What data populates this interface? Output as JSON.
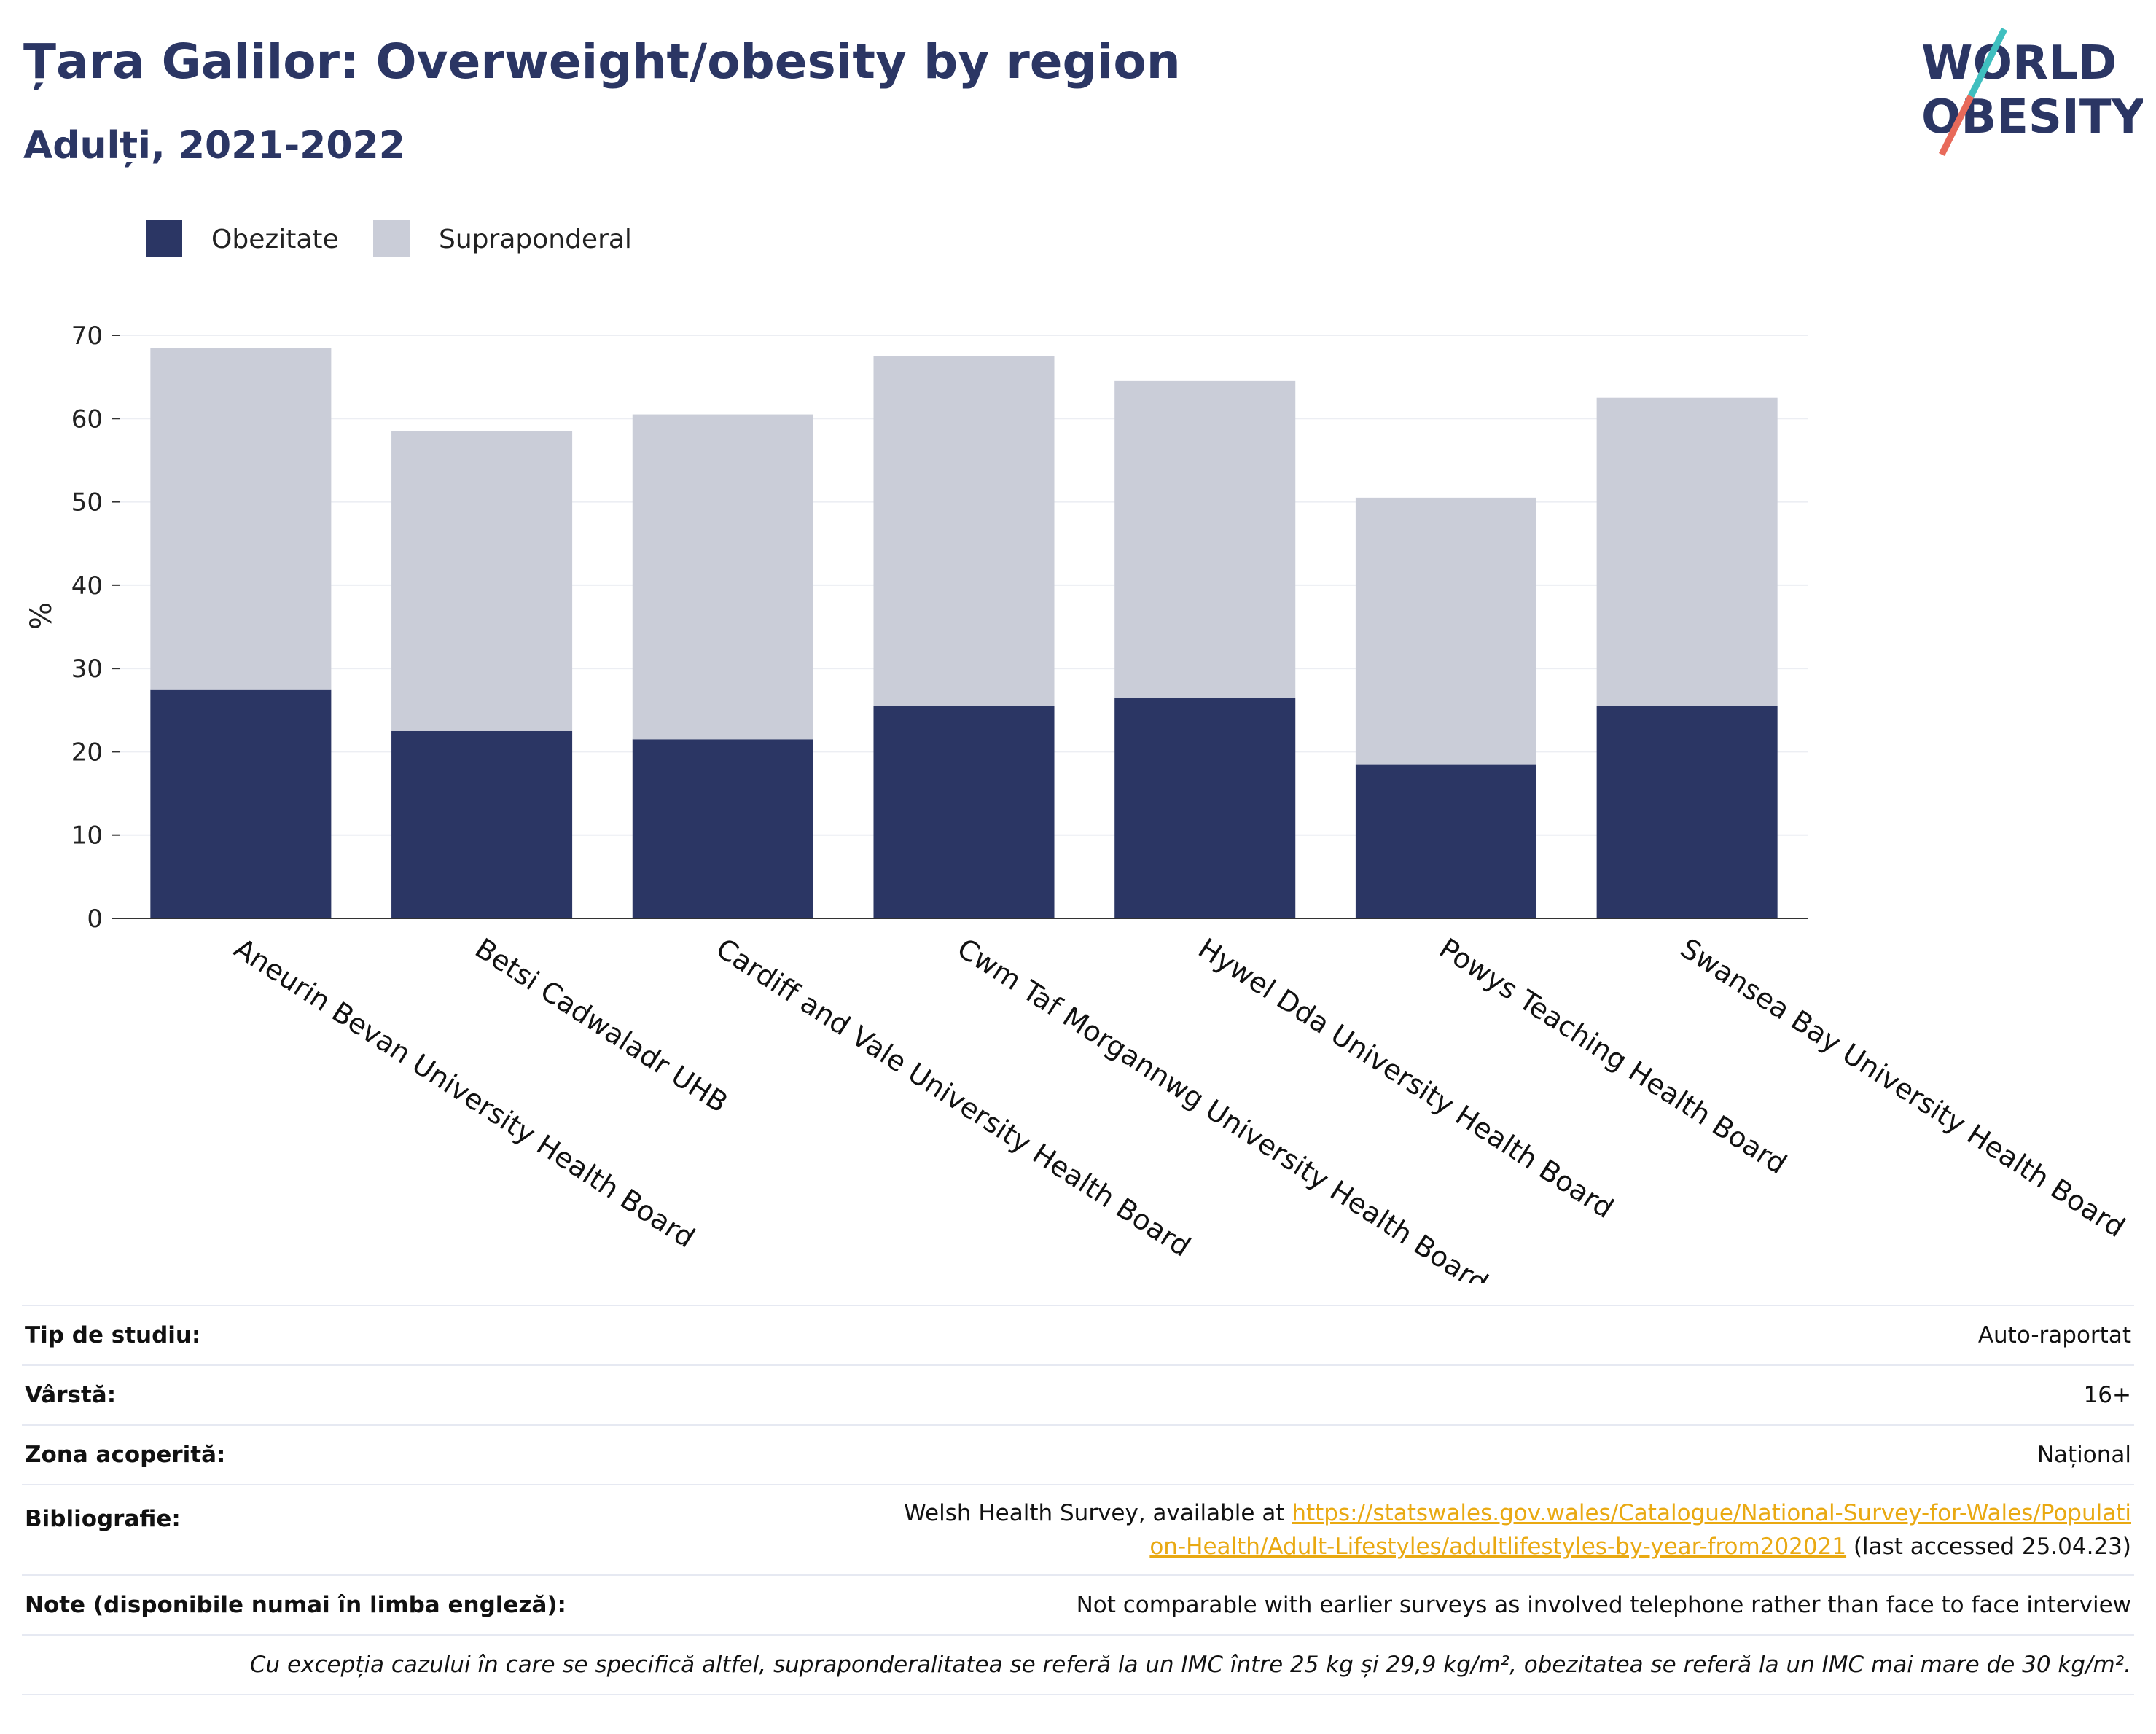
{
  "header": {
    "title": "Țara Galilor: Overweight/obesity by region",
    "subtitle": "Adulți, 2021-2022"
  },
  "logo": {
    "line1": "WORLD",
    "line2": "OBESITY"
  },
  "colors": {
    "obesity": "#2b3664",
    "overweight": "#cacdd8",
    "title": "#2b3664",
    "link": "#e9a912",
    "logo_teal": "#3fbfbf",
    "logo_coral": "#e86a5a"
  },
  "chart_data": {
    "type": "bar",
    "stacked": true,
    "categories": [
      "Aneurin Bevan University Health Board",
      "Betsi Cadwaladr UHB",
      "Cardiff and Vale University Health Board",
      "Cwm Taf Morgannwg University Health Board",
      "Hywel Dda University Health Board",
      "Powys Teaching Health Board",
      "Swansea Bay University Health Board"
    ],
    "series": [
      {
        "name": "Obezitate",
        "values": [
          27.5,
          22.5,
          21.5,
          25.5,
          26.5,
          18.5,
          25.5
        ]
      },
      {
        "name": "Supraponderal",
        "values": [
          41,
          36,
          39,
          42,
          38,
          32,
          37
        ]
      }
    ],
    "ylabel": "%",
    "ylim": [
      0,
      70
    ],
    "yticks": [
      0,
      10,
      20,
      30,
      40,
      50,
      60,
      70
    ],
    "grid": true,
    "legend": "top-left"
  },
  "info": {
    "study_type": {
      "label": "Tip de studiu:",
      "value": "Auto-raportat"
    },
    "age": {
      "label": "Vârstă:",
      "value": "16+"
    },
    "coverage": {
      "label": "Zona acoperită:",
      "value": "Național"
    },
    "bibliography": {
      "label": "Bibliografie:",
      "prefix": "Welsh Health Survey, available at",
      "url": "https://statswales.gov.wales/Catalogue/National-Survey-for-Wales/Population-Health/Adult-Lifestyles/adultlifestyles-by-year-from202021",
      "suffix": "(last accessed 25.04.23)"
    },
    "notes": {
      "label": "Note (disponibile numai în limba engleză):",
      "value": "Not comparable with earlier surveys as involved telephone rather than face to face interview"
    },
    "footnote": "Cu excepția cazului în care se specifică altfel, supraponderalitatea se referă la un IMC între 25 kg și 29,9 kg/m², obezitatea se referă la un IMC mai mare de 30 kg/m²."
  }
}
